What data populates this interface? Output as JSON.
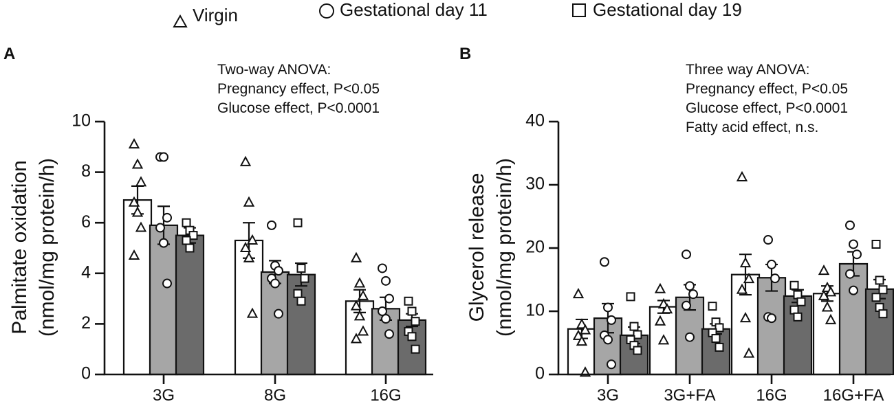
{
  "legend": [
    {
      "name": "Virgin",
      "marker": "triangle",
      "fill": "#ffffff"
    },
    {
      "name": "Gestational day 11",
      "marker": "circle",
      "fill": "#a6a6a6"
    },
    {
      "name": "Gestational day 19",
      "marker": "square",
      "fill": "#6b6b6b"
    }
  ],
  "colors": {
    "virgin": "#ffffff",
    "gd11": "#a6a6a6",
    "gd19": "#6b6b6b",
    "ink": "#111111"
  },
  "chart_data": [
    {
      "panel": "A",
      "type": "bar",
      "ylabel_line1": "Palmitate oxidation",
      "ylabel_line2": "(nmol/mg protein/h)",
      "ylim": [
        0,
        10
      ],
      "yticks": [
        0,
        2,
        4,
        6,
        8,
        10
      ],
      "categories": [
        "3G",
        "8G",
        "16G"
      ],
      "annotation": [
        "Two-way ANOVA:",
        "Pregnancy effect, P<0.05",
        "Glucose effect, P<0.0001"
      ],
      "series": [
        {
          "name": "Virgin",
          "marker": "triangle",
          "values": [
            6.9,
            5.3,
            2.9
          ],
          "sem": [
            0.55,
            0.7,
            0.45
          ],
          "points": [
            [
              9.1,
              8.3,
              7.6,
              6.8,
              6.4,
              5.8,
              4.7
            ],
            [
              8.4,
              6.8,
              5.3,
              5.0,
              4.6,
              2.4
            ],
            [
              4.6,
              3.6,
              3.1,
              2.7,
              2.3,
              1.7,
              1.4
            ]
          ]
        },
        {
          "name": "Gestational day 11",
          "marker": "circle",
          "values": [
            5.9,
            4.05,
            2.6
          ],
          "sem": [
            0.75,
            0.45,
            0.45
          ],
          "points": [
            [
              8.6,
              8.6,
              6.2,
              5.8,
              5.2,
              3.6
            ],
            [
              5.9,
              4.3,
              4.1,
              3.8,
              3.6,
              2.4
            ],
            [
              4.2,
              3.7,
              3.0,
              2.5,
              2.2,
              1.6
            ]
          ]
        },
        {
          "name": "Gestational day 19",
          "marker": "square",
          "values": [
            5.5,
            3.95,
            2.15
          ],
          "sem": [
            0.3,
            0.45,
            0.25
          ],
          "points": [
            [
              6.0,
              5.7,
              5.5,
              5.3,
              5.0
            ],
            [
              6.0,
              4.2,
              3.8,
              3.2,
              2.9
            ],
            [
              2.9,
              2.5,
              2.1,
              1.7,
              1.5,
              1.0
            ]
          ]
        }
      ]
    },
    {
      "panel": "B",
      "type": "bar",
      "ylabel_line1": "Glycerol release",
      "ylabel_line2": "(nmol/mg protein/h)",
      "ylim": [
        0,
        40
      ],
      "yticks": [
        0,
        10,
        20,
        30,
        40
      ],
      "categories": [
        "3G",
        "3G+FA",
        "16G",
        "16G+FA"
      ],
      "annotation": [
        "Three way ANOVA:",
        "Pregnancy effect, P<0.05",
        "Glucose effect, P<0.0001",
        "Fatty acid effect, n.s."
      ],
      "series": [
        {
          "name": "Virgin",
          "marker": "triangle",
          "values": [
            7.2,
            10.7,
            15.8,
            12.8
          ],
          "sem": [
            1.5,
            1.0,
            3.2,
            1.2
          ],
          "points": [
            [
              12.7,
              7.9,
              7.0,
              6.1,
              5.2,
              0.3
            ],
            [
              13.5,
              11.1,
              10.3,
              8.4,
              5.4
            ],
            [
              31.2,
              17.6,
              15.1,
              13.4,
              8.9,
              3.3
            ],
            [
              16.4,
              13.7,
              13.0,
              12.4,
              10.6,
              8.6
            ]
          ]
        },
        {
          "name": "Gestational day 11",
          "marker": "circle",
          "values": [
            8.9,
            12.2,
            15.3,
            17.5
          ],
          "sem": [
            2.3,
            2.0,
            2.1,
            1.9
          ],
          "points": [
            [
              17.8,
              10.6,
              8.6,
              6.2,
              5.5,
              1.6
            ],
            [
              19.0,
              14.0,
              12.7,
              10.9,
              5.9
            ],
            [
              21.3,
              17.4,
              15.2,
              9.1,
              8.9
            ],
            [
              23.6,
              20.6,
              19.0,
              15.9,
              13.3
            ]
          ]
        },
        {
          "name": "Gestational day 19",
          "marker": "square",
          "values": [
            6.2,
            7.2,
            12.4,
            13.5
          ],
          "sem": [
            1.3,
            0.8,
            1.0,
            1.5
          ],
          "points": [
            [
              12.3,
              7.6,
              6.3,
              5.5,
              4.6,
              3.8
            ],
            [
              10.8,
              8.3,
              7.4,
              6.6,
              5.7,
              4.3
            ],
            [
              14.1,
              12.6,
              11.5,
              10.2,
              9.1
            ],
            [
              20.6,
              14.9,
              13.4,
              12.2,
              10.6,
              9.6
            ]
          ]
        }
      ]
    }
  ]
}
